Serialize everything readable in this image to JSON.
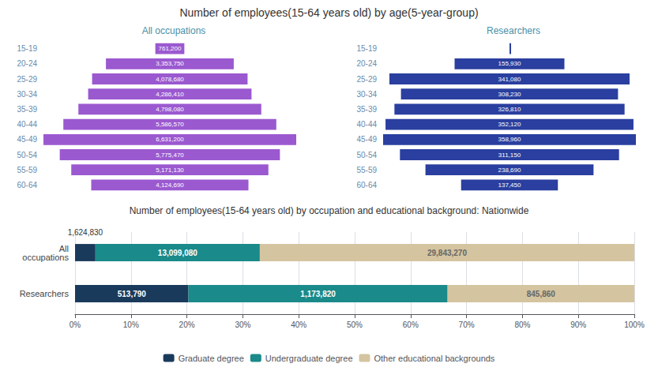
{
  "title": "Number of employees(15-64 years old) by age(5-year-group)",
  "chart_data": [
    {
      "type": "bar",
      "orientation": "horizontal",
      "title": "All occupations",
      "categories": [
        "15-19",
        "20-24",
        "25-29",
        "30-34",
        "35-39",
        "40-44",
        "45-49",
        "50-54",
        "55-59",
        "60-64"
      ],
      "values": [
        761200,
        3353750,
        4078680,
        4286410,
        4798080,
        5586570,
        6631200,
        5775470,
        5171130,
        4124690
      ],
      "value_labels": [
        "761,200",
        "3,353,750",
        "4,078,680",
        "4,286,410",
        "4,798,080",
        "5,586,570",
        "6,631,200",
        "5,775,470",
        "5,171,130",
        "4,124,690"
      ],
      "color": "#9b59d0",
      "xlim": [
        0,
        6631200
      ],
      "xticks": [],
      "data_labels": true,
      "tick_labels": "y",
      "grid": false
    },
    {
      "type": "bar",
      "orientation": "horizontal",
      "title": "Researchers",
      "categories": [
        "15-19",
        "20-24",
        "25-29",
        "30-34",
        "35-39",
        "40-44",
        "45-49",
        "50-54",
        "55-59",
        "60-64"
      ],
      "values": [
        0,
        155930,
        341080,
        308230,
        326810,
        352120,
        358960,
        311150,
        238690,
        137450
      ],
      "value_labels": [
        null,
        "155,930",
        "341,080",
        "308,230",
        "326,810",
        "352,120",
        "358,960",
        "311,150",
        "238,690",
        "137,450"
      ],
      "color": "#2a3f9f",
      "xlim": [
        0,
        358960
      ],
      "xticks": [],
      "data_labels": true,
      "tick_labels": "y",
      "grid": false
    },
    {
      "type": "bar",
      "orientation": "horizontal",
      "stacked": true,
      "title": "Number of employees(15-64 years old) by occupation and educational background: Nationwide",
      "categories": [
        "All\noccupations",
        "Researchers"
      ],
      "series": [
        {
          "name": "Graduate degree",
          "color": "#1a3a5c",
          "values": [
            3.6457994,
            20.28009
          ],
          "count_labels": [
            null,
            "513,790"
          ]
        },
        {
          "name": "Undergraduate degree",
          "color": "#1a8a8a",
          "values": [
            29.391763,
            46.3325
          ],
          "count_labels": [
            "13,099,080",
            "1,173,820"
          ]
        },
        {
          "name": "Other educational backgrounds",
          "color": "#d4c4a0",
          "values": [
            66.962437,
            33.387409
          ],
          "count_labels": [
            "29,843,270",
            "845,860"
          ]
        }
      ],
      "annotations": [
        {
          "text": "1,624,830",
          "category": "All\noccupations",
          "series": "Graduate degree"
        }
      ],
      "xlim": [
        0,
        100
      ],
      "xticks": [
        {
          "value": 0,
          "label": "0%"
        },
        {
          "value": 10,
          "label": "10%"
        },
        {
          "value": 20,
          "label": "20%"
        },
        {
          "value": 30,
          "label": "30%"
        },
        {
          "value": 40,
          "label": "40%"
        },
        {
          "value": 50,
          "label": "50%"
        },
        {
          "value": 60,
          "label": "60%"
        },
        {
          "value": 70,
          "label": "70%"
        },
        {
          "value": 80,
          "label": "80%"
        },
        {
          "value": 90,
          "label": "90%"
        },
        {
          "value": 100,
          "label": "100%"
        }
      ],
      "grid": true,
      "legend": "bottom",
      "tick_labels": true
    }
  ]
}
